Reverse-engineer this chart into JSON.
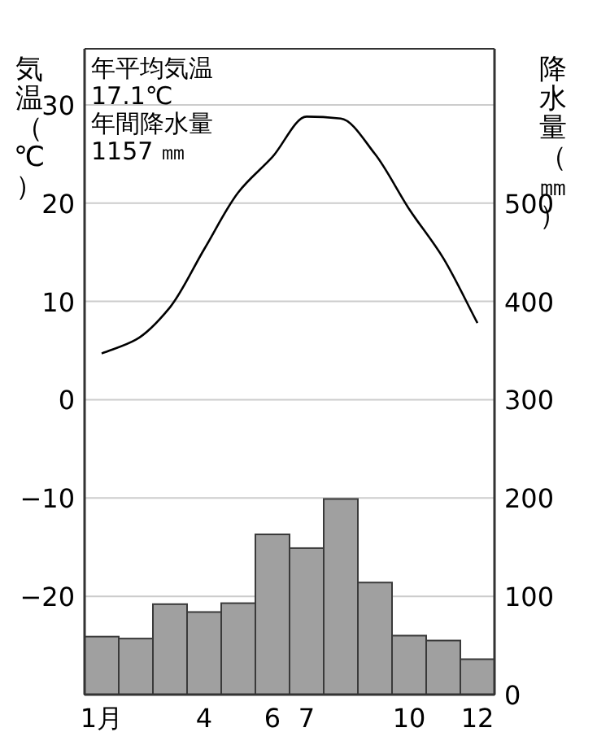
{
  "chart_data": {
    "type": "bar",
    "categories": [
      "1月",
      null,
      null,
      "4",
      null,
      "6",
      "7",
      null,
      null,
      "10",
      null,
      "12"
    ],
    "series": [
      {
        "axis": "y2",
        "color": "#a0a0a0",
        "values": [
          59,
          57,
          92,
          84,
          93,
          163,
          149,
          199,
          114,
          60,
          55,
          36
        ]
      },
      {
        "type": "line",
        "axis": "y",
        "color": "#000000",
        "values": [
          4.7,
          6.1,
          9.4,
          15.3,
          21.1,
          24.7,
          28.8,
          28.6,
          25.0,
          19.4,
          14.4,
          7.8
        ]
      }
    ],
    "ylabel": "気温（℃）",
    "y2label": "降水量（㎜）",
    "ylim": [
      -30,
      35.7
    ],
    "yticks": [
      {
        "value": -30,
        "label": null
      },
      -20,
      -10,
      0,
      10,
      20,
      30
    ],
    "y2lim": [
      0,
      657
    ],
    "y2ticks": [
      0,
      100,
      200,
      300,
      400,
      500
    ],
    "grid": "y",
    "annotations": [
      "年平均気温",
      "17.1℃",
      "年間降水量",
      "1157 ㎜"
    ]
  }
}
